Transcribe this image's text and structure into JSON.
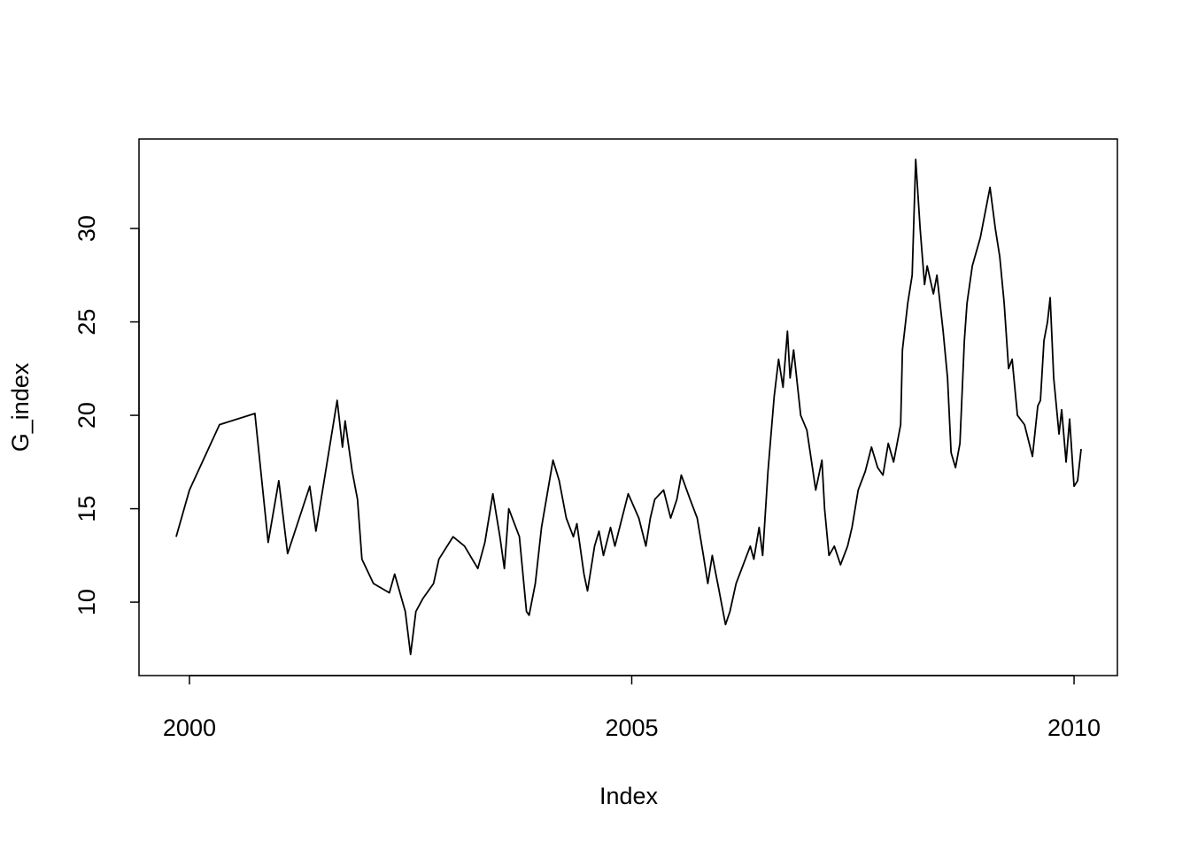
{
  "chart_data": {
    "type": "line",
    "xlabel": "Index",
    "ylabel": "G_index",
    "x": [
      1999.85,
      2000.0,
      2000.34,
      2000.74,
      2000.89,
      2001.01,
      2001.11,
      2001.36,
      2001.43,
      2001.67,
      2001.73,
      2001.76,
      2001.84,
      2001.9,
      2001.95,
      2002.08,
      2002.26,
      2002.32,
      2002.44,
      2002.5,
      2002.56,
      2002.64,
      2002.76,
      2002.82,
      2002.98,
      2003.11,
      2003.26,
      2003.34,
      2003.43,
      2003.51,
      2003.56,
      2003.61,
      2003.73,
      2003.81,
      2003.84,
      2003.91,
      2003.98,
      2004.11,
      2004.18,
      2004.26,
      2004.34,
      2004.38,
      2004.46,
      2004.5,
      2004.58,
      2004.63,
      2004.68,
      2004.76,
      2004.81,
      2004.89,
      2004.96,
      2005.08,
      2005.16,
      2005.21,
      2005.26,
      2005.36,
      2005.44,
      2005.51,
      2005.56,
      2005.66,
      2005.74,
      2005.81,
      2005.86,
      2005.91,
      2005.98,
      2006.06,
      2006.11,
      2006.18,
      2006.26,
      2006.34,
      2006.38,
      2006.44,
      2006.48,
      2006.54,
      2006.61,
      2006.66,
      2006.71,
      2006.76,
      2006.79,
      2006.83,
      2006.91,
      2006.98,
      2007.08,
      2007.15,
      2007.18,
      2007.23,
      2007.29,
      2007.36,
      2007.44,
      2007.49,
      2007.56,
      2007.64,
      2007.71,
      2007.78,
      2007.84,
      2007.9,
      2007.96,
      2008.04,
      2008.06,
      2008.12,
      2008.17,
      2008.21,
      2008.26,
      2008.31,
      2008.34,
      2008.41,
      2008.45,
      2008.52,
      2008.57,
      2008.61,
      2008.66,
      2008.71,
      2008.76,
      2008.79,
      2008.85,
      2008.94,
      2009.05,
      2009.11,
      2009.16,
      2009.21,
      2009.26,
      2009.3,
      2009.36,
      2009.44,
      2009.53,
      2009.59,
      2009.62,
      2009.66,
      2009.7,
      2009.73,
      2009.77,
      2009.83,
      2009.86,
      2009.91,
      2009.95,
      2010.0,
      2010.04,
      2010.08
    ],
    "series": [
      {
        "name": "G_index",
        "color": "#000000",
        "values": [
          13.5,
          16.0,
          19.5,
          20.1,
          13.2,
          16.5,
          12.6,
          16.2,
          13.8,
          20.8,
          18.3,
          19.7,
          17.0,
          15.5,
          12.3,
          11.0,
          10.5,
          11.5,
          9.5,
          7.2,
          9.5,
          10.2,
          11.0,
          12.3,
          13.5,
          13.0,
          11.8,
          13.2,
          15.8,
          13.5,
          11.8,
          15.0,
          13.5,
          9.5,
          9.3,
          11.0,
          14.0,
          17.6,
          16.5,
          14.5,
          13.5,
          14.2,
          11.5,
          10.6,
          13.0,
          13.8,
          12.5,
          14.0,
          13.0,
          14.5,
          15.8,
          14.5,
          13.0,
          14.5,
          15.5,
          16.0,
          14.5,
          15.5,
          16.8,
          15.5,
          14.5,
          12.5,
          11.0,
          12.5,
          10.8,
          8.8,
          9.5,
          11.0,
          12.0,
          13.0,
          12.3,
          14.0,
          12.5,
          17.0,
          21.0,
          23.0,
          21.5,
          24.5,
          22.0,
          23.5,
          20.0,
          19.2,
          16.0,
          17.6,
          15.0,
          12.5,
          13.0,
          12.0,
          13.0,
          14.0,
          16.0,
          17.0,
          18.3,
          17.2,
          16.8,
          18.5,
          17.5,
          19.5,
          23.5,
          26.0,
          27.5,
          33.7,
          30.0,
          27.0,
          28.0,
          26.5,
          27.5,
          24.5,
          22.0,
          18.0,
          17.2,
          18.5,
          24.0,
          26.0,
          28.0,
          29.5,
          32.2,
          30.0,
          28.5,
          26.0,
          22.5,
          23.0,
          20.0,
          19.5,
          17.8,
          20.5,
          20.8,
          24.0,
          25.0,
          26.3,
          22.0,
          19.0,
          20.3,
          17.5,
          19.8,
          16.2,
          16.5,
          18.2
        ]
      }
    ],
    "xlim": [
      1999.43,
      2010.49
    ],
    "xticks": [
      2000,
      2005,
      2010
    ],
    "ylim": [
      6.07,
      34.79
    ],
    "yticks": [
      10,
      15,
      20,
      25,
      30
    ],
    "grid": false
  }
}
